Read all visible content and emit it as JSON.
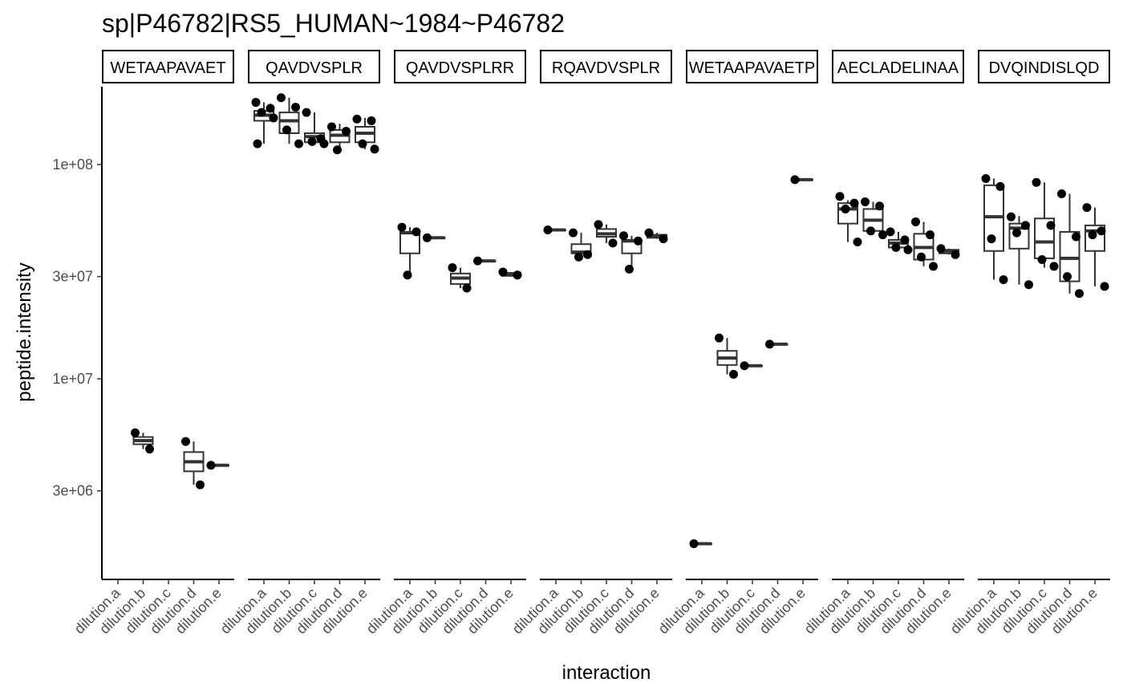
{
  "chart_data": {
    "type": "box",
    "title": "sp|P46782|RS5_HUMAN~1984~P46782",
    "xlabel": "interaction",
    "ylabel": "peptide.intensity",
    "y_scale": "log10",
    "ylim": [
      1000000,
      300000000
    ],
    "y_ticks": [
      {
        "value": 100000000,
        "label": "1e+08"
      },
      {
        "value": 30000000,
        "label": "3e+07"
      },
      {
        "value": 10000000,
        "label": "1e+07"
      },
      {
        "value": 3000000,
        "label": "3e+06"
      }
    ],
    "categories": [
      "dilution.a",
      "dilution.b",
      "dilution.c",
      "dilution.d",
      "dilution.e"
    ],
    "grid": false,
    "facets": [
      {
        "label": "WETAAPAVAET",
        "boxes": [
          {
            "category": "dilution.b",
            "stats": [
              4700000,
              4950000,
              5150000,
              5350000,
              5600000
            ],
            "points": [
              5600000,
              4700000
            ]
          },
          {
            "category": "dilution.d",
            "stats": [
              3200000,
              3700000,
              4100000,
              4550000,
              5100000
            ],
            "points": [
              5100000,
              3200000
            ]
          },
          {
            "category": "dilution.e",
            "stats": [
              3950000,
              3950000,
              3950000,
              3950000,
              3950000
            ],
            "points": [
              3950000
            ]
          }
        ]
      },
      {
        "label": "QAVDVSPLR",
        "boxes": [
          {
            "category": "dilution.a",
            "stats": [
              125000000,
              160000000,
              170000000,
              178000000,
              195000000
            ],
            "points": [
              195000000,
              183000000,
              175000000,
              165000000,
              125000000
            ]
          },
          {
            "category": "dilution.b",
            "stats": [
              125000000,
              140000000,
              160000000,
              175000000,
              205000000
            ],
            "points": [
              205000000,
              185000000,
              145000000,
              125000000
            ]
          },
          {
            "category": "dilution.c",
            "stats": [
              125000000,
              127000000,
              135000000,
              140000000,
              175000000
            ],
            "points": [
              175000000,
              132000000,
              128000000,
              125000000
            ]
          },
          {
            "category": "dilution.d",
            "stats": [
              117000000,
              127000000,
              137000000,
              145000000,
              155000000
            ],
            "points": [
              150000000,
              143000000,
              117000000
            ]
          },
          {
            "category": "dilution.e",
            "stats": [
              118000000,
              127000000,
              140000000,
              150000000,
              165000000
            ],
            "points": [
              163000000,
              160000000,
              125000000,
              118000000
            ]
          }
        ]
      },
      {
        "label": "QAVDVSPLRR",
        "boxes": [
          {
            "category": "dilution.a",
            "stats": [
              30500000,
              38500000,
              48000000,
              48500000,
              51000000
            ],
            "points": [
              51000000,
              48500000,
              30500000
            ]
          },
          {
            "category": "dilution.b",
            "stats": [
              45500000,
              45500000,
              45500000,
              45500000,
              45500000
            ],
            "points": [
              45500000
            ]
          },
          {
            "category": "dilution.c",
            "stats": [
              26500000,
              27700000,
              29500000,
              31000000,
              33000000
            ],
            "points": [
              33000000,
              26500000
            ]
          },
          {
            "category": "dilution.d",
            "stats": [
              35500000,
              35500000,
              35500000,
              35500000,
              35500000
            ],
            "points": [
              35500000
            ]
          },
          {
            "category": "dilution.e",
            "stats": [
              30500000,
              30500000,
              30500000,
              31200000,
              31500000
            ],
            "points": [
              31500000,
              30500000
            ]
          }
        ]
      },
      {
        "label": "RQAVDVSPLR",
        "boxes": [
          {
            "category": "dilution.a",
            "stats": [
              49500000,
              49500000,
              49500000,
              49500000,
              49500000
            ],
            "points": [
              49500000
            ]
          },
          {
            "category": "dilution.b",
            "stats": [
              37000000,
              38500000,
              39000000,
              42500000,
              48000000
            ],
            "points": [
              48000000,
              38000000,
              37000000
            ]
          },
          {
            "category": "dilution.c",
            "stats": [
              43000000,
              46000000,
              47500000,
              50000000,
              52500000
            ],
            "points": [
              52500000,
              43000000
            ]
          },
          {
            "category": "dilution.d",
            "stats": [
              32500000,
              38500000,
              44000000,
              44500000,
              46500000
            ],
            "points": [
              46500000,
              44000000,
              32500000
            ]
          },
          {
            "category": "dilution.e",
            "stats": [
              45000000,
              45500000,
              46500000,
              47000000,
              48000000
            ],
            "points": [
              48000000,
              45000000
            ]
          }
        ]
      },
      {
        "label": "WETAAPAVAETP",
        "boxes": [
          {
            "category": "dilution.a",
            "stats": [
              1700000,
              1700000,
              1700000,
              1700000,
              1700000
            ],
            "points": [
              1700000
            ]
          },
          {
            "category": "dilution.b",
            "stats": [
              10500000,
              11600000,
              12500000,
              13500000,
              15500000
            ],
            "points": [
              15500000,
              10500000
            ]
          },
          {
            "category": "dilution.c",
            "stats": [
              11500000,
              11500000,
              11500000,
              11500000,
              11500000
            ],
            "points": [
              11500000
            ]
          },
          {
            "category": "dilution.d",
            "stats": [
              14500000,
              14500000,
              14500000,
              14500000,
              14500000
            ],
            "points": [
              14500000
            ]
          },
          {
            "category": "dilution.e",
            "stats": [
              85000000,
              85000000,
              85000000,
              85000000,
              85000000
            ],
            "points": [
              85000000
            ]
          }
        ]
      },
      {
        "label": "AECLADELINAA",
        "boxes": [
          {
            "category": "dilution.a",
            "stats": [
              43500000,
              53000000,
              62000000,
              66000000,
              68000000
            ],
            "points": [
              71000000,
              66000000,
              62000000,
              43500000
            ]
          },
          {
            "category": "dilution.b",
            "stats": [
              47000000,
              49000000,
              55000000,
              62000000,
              67000000
            ],
            "points": [
              67000000,
              64000000,
              49000000,
              47000000
            ]
          },
          {
            "category": "dilution.c",
            "stats": [
              40000000,
              41000000,
              43000000,
              44500000,
              48500000
            ],
            "points": [
              48500000,
              44500000,
              41000000,
              40000000
            ]
          },
          {
            "category": "dilution.d",
            "stats": [
              33500000,
              36000000,
              41000000,
              47500000,
              54000000
            ],
            "points": [
              54000000,
              47000000,
              37000000,
              33500000
            ]
          },
          {
            "category": "dilution.e",
            "stats": [
              38000000,
              38500000,
              39500000,
              40000000,
              40500000
            ],
            "points": [
              40500000,
              38000000
            ]
          }
        ]
      },
      {
        "label": "DVQINDISLQD",
        "boxes": [
          {
            "category": "dilution.a",
            "stats": [
              29000000,
              39500000,
              57000000,
              80000000,
              86000000
            ],
            "points": [
              86000000,
              79000000,
              45000000,
              29000000
            ]
          },
          {
            "category": "dilution.b",
            "stats": [
              27500000,
              40500000,
              50500000,
              53000000,
              57500000
            ],
            "points": [
              57000000,
              52000000,
              48000000,
              27500000
            ]
          },
          {
            "category": "dilution.c",
            "stats": [
              33000000,
              36500000,
              43500000,
              56000000,
              82500000
            ],
            "points": [
              82500000,
              52000000,
              36000000,
              33500000
            ]
          },
          {
            "category": "dilution.d",
            "stats": [
              25000000,
              28500000,
              36500000,
              48500000,
              73000000
            ],
            "points": [
              73000000,
              46000000,
              30000000,
              25000000
            ]
          },
          {
            "category": "dilution.e",
            "stats": [
              27000000,
              39500000,
              49000000,
              52000000,
              63000000
            ],
            "points": [
              63000000,
              49000000,
              47000000,
              27000000
            ]
          }
        ]
      }
    ]
  }
}
